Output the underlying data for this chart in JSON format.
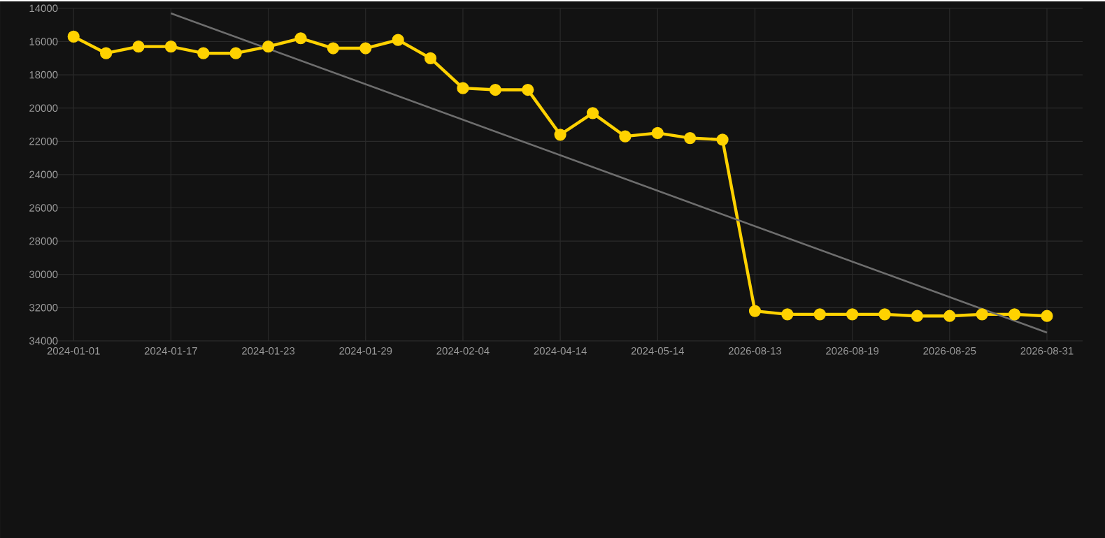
{
  "chart_data": {
    "type": "line",
    "categories": [
      "2024-01-01",
      null,
      null,
      "2024-01-17",
      null,
      null,
      "2024-01-23",
      null,
      null,
      "2024-01-29",
      null,
      null,
      "2024-02-04",
      null,
      null,
      "2024-04-14",
      null,
      null,
      "2024-05-14",
      null,
      null,
      "2026-08-13",
      null,
      null,
      "2026-08-19",
      null,
      null,
      "2026-08-25",
      null,
      null,
      "2026-08-31"
    ],
    "series": [
      {
        "color": "#ffd200",
        "marker": "circle",
        "values": [
          15700,
          16700,
          16300,
          16300,
          16700,
          16700,
          16300,
          15800,
          16400,
          16400,
          15900,
          17000,
          18800,
          18900,
          18900,
          21600,
          20300,
          21700,
          21500,
          21800,
          21900,
          32200,
          32400,
          32400,
          32400,
          32400,
          32500,
          32500,
          32400,
          32400,
          32500
        ]
      },
      {
        "color": "#6e6e6e",
        "marker": "none",
        "values": [
          null,
          null,
          null,
          14300,
          null,
          null,
          null,
          null,
          null,
          null,
          null,
          null,
          null,
          null,
          null,
          null,
          null,
          null,
          null,
          null,
          null,
          null,
          null,
          null,
          null,
          null,
          null,
          null,
          null,
          null,
          33500
        ]
      }
    ],
    "ylim": [
      34000,
      14000
    ],
    "yticks": [
      14000,
      16000,
      18000,
      20000,
      22000,
      24000,
      26000,
      28000,
      30000,
      32000,
      34000
    ],
    "grid": true
  }
}
